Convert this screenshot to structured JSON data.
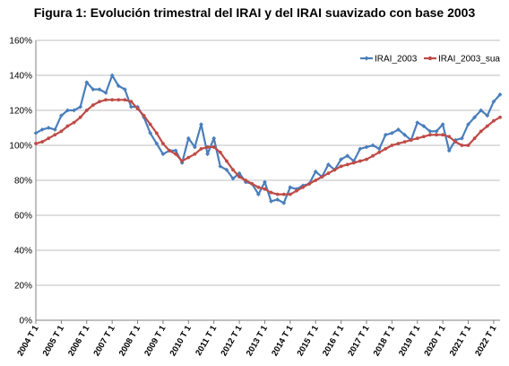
{
  "chart_data": {
    "type": "line",
    "title": "Figura 1: Evolución trimestral del IRAI y del IRAI suavizado con base 2003",
    "xlabel": "",
    "ylabel": "",
    "ylim": [
      0,
      160
    ],
    "yticks": [
      "0%",
      "20%",
      "40%",
      "60%",
      "80%",
      "100%",
      "120%",
      "140%",
      "160%"
    ],
    "grid": true,
    "legend_position": "top-right",
    "x": [
      "2004 T1",
      "2004 T2",
      "2004 T3",
      "2004 T4",
      "2005 T1",
      "2005 T2",
      "2005 T3",
      "2005 T4",
      "2006 T1",
      "2006 T2",
      "2006 T3",
      "2006 T4",
      "2007 T1",
      "2007 T2",
      "2007 T3",
      "2007 T4",
      "2008 T1",
      "2008 T2",
      "2008 T3",
      "2008 T4",
      "2009 T1",
      "2009 T2",
      "2009 T3",
      "2009 T4",
      "2010 T1",
      "2010 T2",
      "2010 T3",
      "2010 T4",
      "2011 T1",
      "2011 T2",
      "2011 T3",
      "2011 T4",
      "2012 T1",
      "2012 T2",
      "2012 T3",
      "2012 T4",
      "2013 T1",
      "2013 T2",
      "2013 T3",
      "2013 T4",
      "2014 T1",
      "2014 T2",
      "2014 T3",
      "2014 T4",
      "2015 T1",
      "2015 T2",
      "2015 T3",
      "2015 T4",
      "2016 T1",
      "2016 T2",
      "2016 T3",
      "2016 T4",
      "2017 T1",
      "2017 T2",
      "2017 T3",
      "2017 T4",
      "2018 T1",
      "2018 T2",
      "2018 T3",
      "2018 T4",
      "2019 T1",
      "2019 T2",
      "2019 T3",
      "2019 T4",
      "2020 T1",
      "2020 T2",
      "2020 T3",
      "2020 T4",
      "2021 T1",
      "2021 T2",
      "2021 T3",
      "2021 T4",
      "2022 T1",
      "2022 T2"
    ],
    "xtick_labels": [
      "2004 T 1",
      "2005 T 1",
      "2006 T 1",
      "2007 T 1",
      "2008 T 1",
      "2009 T 1",
      "2010 T 1",
      "2011 T 1",
      "2012 T 1",
      "2013 T 1",
      "2014 T 1",
      "2015 T 1",
      "2016 T 1",
      "2017 T 1",
      "2018 T 1",
      "2019 T 1",
      "2020 T 1",
      "2021 T 1",
      "2022 T 1"
    ],
    "series": [
      {
        "name": "IRAI_2003",
        "color": "#4a7ebb",
        "marker": "diamond",
        "values": [
          107,
          109,
          110,
          109,
          117,
          120,
          120,
          122,
          136,
          132,
          132,
          130,
          140,
          134,
          132,
          122,
          122,
          116,
          107,
          101,
          95,
          97,
          97,
          90,
          104,
          99,
          112,
          95,
          104,
          88,
          86,
          81,
          84,
          79,
          78,
          72,
          79,
          68,
          69,
          67,
          76,
          75,
          77,
          78,
          85,
          82,
          89,
          86,
          92,
          94,
          91,
          98,
          99,
          100,
          98,
          106,
          107,
          109,
          106,
          103,
          113,
          111,
          108,
          108,
          112,
          97,
          103,
          104,
          112,
          116,
          120,
          117,
          125,
          129
        ]
      },
      {
        "name": "IRAI_2003_sua",
        "color": "#be4b48",
        "marker": "circle",
        "values": [
          101,
          102,
          104,
          106,
          108,
          111,
          113,
          116,
          120,
          123,
          125,
          126,
          126,
          126,
          126,
          125,
          121,
          117,
          112,
          107,
          101,
          97,
          95,
          91,
          93,
          95,
          98,
          99,
          99,
          96,
          91,
          86,
          82,
          80,
          78,
          76,
          75,
          73,
          72,
          72,
          72,
          74,
          76,
          78,
          80,
          82,
          84,
          86,
          88,
          89,
          90,
          91,
          92,
          94,
          96,
          98,
          100,
          101,
          102,
          103,
          104,
          105,
          106,
          106,
          106,
          105,
          102,
          100,
          100,
          104,
          108,
          111,
          114,
          116
        ]
      }
    ]
  }
}
